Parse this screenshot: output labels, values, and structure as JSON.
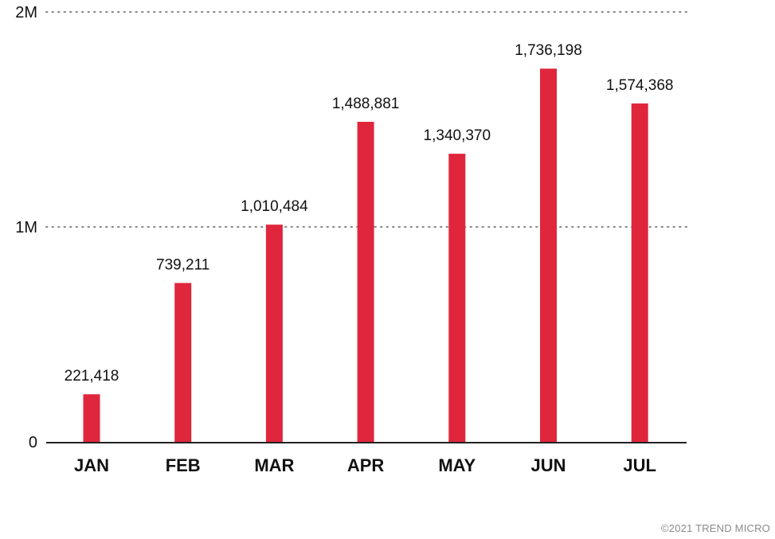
{
  "chart_data": {
    "type": "bar",
    "categories": [
      "JAN",
      "FEB",
      "MAR",
      "APR",
      "MAY",
      "JUN",
      "JUL"
    ],
    "values": [
      221418,
      739211,
      1010484,
      1488881,
      1340370,
      1736198,
      1574368
    ],
    "value_labels": [
      "221,418",
      "739,211",
      "1,010,484",
      "1,488,881",
      "1,340,370",
      "1,736,198",
      "1,574,368"
    ],
    "yticks": [
      0,
      1000000,
      2000000
    ],
    "ytick_labels": [
      "0",
      "1M",
      "2M"
    ],
    "ylim": [
      0,
      2000000
    ],
    "grid": "dotted horizontal at 1M and 2M",
    "legend": "none",
    "bar_color": "#e0263d",
    "axis_color": "#222222",
    "grid_color": "#888888"
  },
  "credit": "©2021 TREND MICRO"
}
